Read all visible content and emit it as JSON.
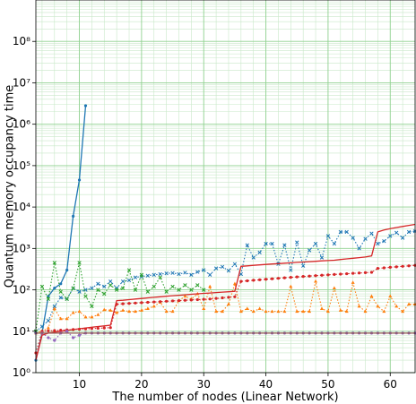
{
  "chart_data": {
    "type": "line",
    "title": "",
    "xlabel": "The number of nodes (Linear Network)",
    "ylabel": "Quantum memory occupancy time",
    "xscale": "linear",
    "yscale": "log",
    "xlim": [
      3,
      64
    ],
    "ylim": [
      1,
      1000000000
    ],
    "xticks": [
      10,
      20,
      30,
      40,
      50,
      60
    ],
    "xtick_labels": [
      "10",
      "20",
      "30",
      "40",
      "50",
      "60"
    ],
    "yticks": [
      1,
      10,
      100,
      1000,
      10000,
      100000,
      1000000,
      10000000,
      100000000
    ],
    "ytick_labels": [
      "10⁰",
      "10¹",
      "10²",
      "10³",
      "10⁴",
      "10⁵",
      "10⁶",
      "10⁷",
      "10⁸"
    ],
    "grid": true,
    "legend": "none",
    "series": [
      {
        "color": "#1f77b4",
        "linestyle": "solid",
        "marker": "dot",
        "x": [
          3,
          4,
          5,
          6,
          7,
          8,
          9,
          10,
          11
        ],
        "y": [
          2,
          9,
          70,
          110,
          140,
          300,
          6000,
          45000,
          2800000
        ]
      },
      {
        "color": "#1f77b4",
        "linestyle": "dotted",
        "marker": "x",
        "x": [
          3,
          4,
          5,
          6,
          7,
          8,
          9,
          10,
          11,
          12,
          13,
          14,
          15,
          16,
          17,
          18,
          19,
          20,
          21,
          22,
          23,
          24,
          25,
          26,
          27,
          28,
          29,
          30,
          31,
          32,
          33,
          34,
          35,
          36,
          37,
          38,
          39,
          40,
          41,
          42,
          43,
          44,
          45,
          46,
          47,
          48,
          49,
          50,
          51,
          52,
          53,
          54,
          55,
          56,
          57,
          58,
          59,
          60,
          61,
          62,
          63,
          64
        ],
        "y": [
          10,
          13,
          18,
          40,
          65,
          60,
          110,
          90,
          100,
          110,
          140,
          120,
          160,
          110,
          160,
          170,
          200,
          210,
          220,
          230,
          240,
          250,
          255,
          240,
          260,
          230,
          270,
          300,
          230,
          330,
          360,
          290,
          420,
          240,
          1200,
          600,
          800,
          1300,
          1300,
          420,
          1200,
          300,
          1400,
          380,
          900,
          1300,
          600,
          2000,
          1300,
          2500,
          2500,
          1800,
          1000,
          1700,
          2300,
          1300,
          1500,
          2000,
          2400,
          1800,
          2500,
          2600
        ]
      },
      {
        "color": "#ff7f0e",
        "linestyle": "dotted",
        "marker": "triangle",
        "x": [
          3,
          4,
          5,
          6,
          7,
          8,
          9,
          10,
          11,
          12,
          13,
          14,
          15,
          16,
          17,
          18,
          19,
          20,
          21,
          22,
          23,
          24,
          25,
          26,
          27,
          28,
          29,
          30,
          31,
          32,
          33,
          34,
          35,
          36,
          37,
          38,
          39,
          40,
          41,
          42,
          43,
          44,
          45,
          46,
          47,
          48,
          49,
          50,
          51,
          52,
          53,
          54,
          55,
          56,
          57,
          58,
          59,
          60,
          61,
          62,
          63,
          64
        ],
        "y": [
          9,
          10,
          12,
          35,
          20,
          20,
          28,
          30,
          22,
          22,
          25,
          33,
          32,
          28,
          32,
          30,
          30,
          32,
          35,
          40,
          50,
          30,
          30,
          55,
          70,
          60,
          80,
          35,
          120,
          30,
          30,
          45,
          140,
          30,
          35,
          30,
          35,
          30,
          30,
          30,
          30,
          120,
          30,
          30,
          30,
          160,
          35,
          30,
          110,
          32,
          30,
          150,
          40,
          30,
          70,
          40,
          30,
          70,
          40,
          30,
          45,
          45
        ]
      },
      {
        "color": "#2ca02c",
        "linestyle": "dotted",
        "marker": "x",
        "x": [
          3,
          4,
          5,
          6,
          7,
          8,
          9,
          10,
          11,
          12,
          13,
          14,
          15,
          16,
          17,
          18,
          19,
          20,
          21,
          22,
          23,
          24,
          25,
          26,
          27,
          28,
          29,
          30
        ],
        "y": [
          10,
          120,
          60,
          450,
          90,
          60,
          110,
          450,
          70,
          40,
          100,
          80,
          130,
          100,
          110,
          300,
          100,
          230,
          90,
          120,
          200,
          90,
          120,
          100,
          130,
          100,
          130,
          100
        ]
      },
      {
        "color": "#d62728",
        "linestyle": "solid",
        "marker": "none",
        "x": [
          3,
          4,
          5,
          6,
          7,
          8,
          9,
          10,
          11,
          12,
          13,
          14,
          15,
          16,
          17,
          18,
          19,
          20,
          21,
          22,
          23,
          24,
          25,
          26,
          27,
          28,
          29,
          30,
          31,
          32,
          33,
          34,
          35,
          36,
          37,
          38,
          39,
          40,
          41,
          42,
          43,
          44,
          45,
          46,
          47,
          48,
          49,
          50,
          51,
          52,
          53,
          54,
          55,
          56,
          57,
          58,
          59,
          60,
          61,
          62,
          63,
          64
        ],
        "y": [
          2,
          8,
          9,
          9.5,
          10,
          10.5,
          11,
          11.5,
          12,
          12.5,
          13,
          13.5,
          14,
          55,
          56,
          58,
          60,
          62,
          64,
          66,
          68,
          70,
          72,
          74,
          76,
          78,
          80,
          82,
          84,
          86,
          88,
          90,
          92,
          370,
          380,
          390,
          400,
          410,
          420,
          430,
          440,
          450,
          460,
          470,
          480,
          490,
          500,
          510,
          520,
          540,
          560,
          580,
          600,
          620,
          660,
          2500,
          2800,
          3000,
          3200,
          3400,
          3600,
          3800
        ]
      },
      {
        "color": "#d62728",
        "linestyle": "dotted",
        "marker": "dot",
        "x": [
          3,
          4,
          5,
          6,
          7,
          8,
          9,
          10,
          11,
          12,
          13,
          14,
          15,
          16,
          17,
          18,
          19,
          20,
          21,
          22,
          23,
          24,
          25,
          26,
          27,
          28,
          29,
          30,
          31,
          32,
          33,
          34,
          35,
          36,
          37,
          38,
          39,
          40,
          41,
          42,
          43,
          44,
          45,
          46,
          47,
          48,
          49,
          50,
          51,
          52,
          53,
          54,
          55,
          56,
          57,
          58,
          59,
          60,
          61,
          62,
          63,
          64
        ],
        "y": [
          3,
          10,
          10.2,
          10.4,
          10.6,
          10.8,
          11,
          11.2,
          11.4,
          11.6,
          11.8,
          12,
          12.2,
          45,
          46,
          47,
          48,
          49,
          50,
          51,
          52,
          53,
          54,
          55,
          56,
          57,
          58,
          59,
          60,
          62,
          64,
          66,
          68,
          160,
          165,
          170,
          175,
          180,
          185,
          190,
          195,
          200,
          205,
          210,
          215,
          220,
          225,
          230,
          235,
          240,
          245,
          250,
          255,
          260,
          265,
          330,
          340,
          350,
          360,
          370,
          380,
          390
        ]
      },
      {
        "color": "#9467bd",
        "linestyle": "dotted",
        "marker": "dot",
        "x": [
          3,
          4,
          5,
          6,
          7,
          8,
          9,
          10,
          11,
          12,
          13,
          14,
          15,
          16,
          17,
          18,
          19,
          20,
          21,
          22,
          23,
          24,
          25,
          26,
          27,
          28,
          29,
          30,
          31,
          32,
          33,
          34,
          35,
          36,
          37,
          38,
          39,
          40,
          41,
          42,
          43,
          44,
          45,
          46,
          47,
          48,
          49,
          50,
          51,
          52,
          53,
          54,
          55,
          56,
          57,
          58,
          59,
          60,
          61,
          62,
          63,
          64
        ],
        "y": [
          9,
          9,
          7,
          6,
          9,
          10,
          7,
          8,
          9,
          9,
          9,
          9,
          9,
          9,
          9,
          9,
          9,
          9,
          9,
          9,
          9,
          9,
          9,
          9,
          9,
          9,
          9,
          9,
          9,
          9,
          9,
          9,
          9,
          9,
          9,
          9,
          9,
          9,
          9,
          9,
          9,
          9,
          9,
          9,
          9,
          9,
          9,
          9,
          9,
          9,
          9,
          9,
          9,
          9,
          9,
          9,
          9,
          9,
          9,
          9,
          9,
          9
        ]
      },
      {
        "color": "#8c564b",
        "linestyle": "solid",
        "marker": "none",
        "x": [
          3,
          64
        ],
        "y": [
          9,
          9
        ]
      }
    ]
  }
}
